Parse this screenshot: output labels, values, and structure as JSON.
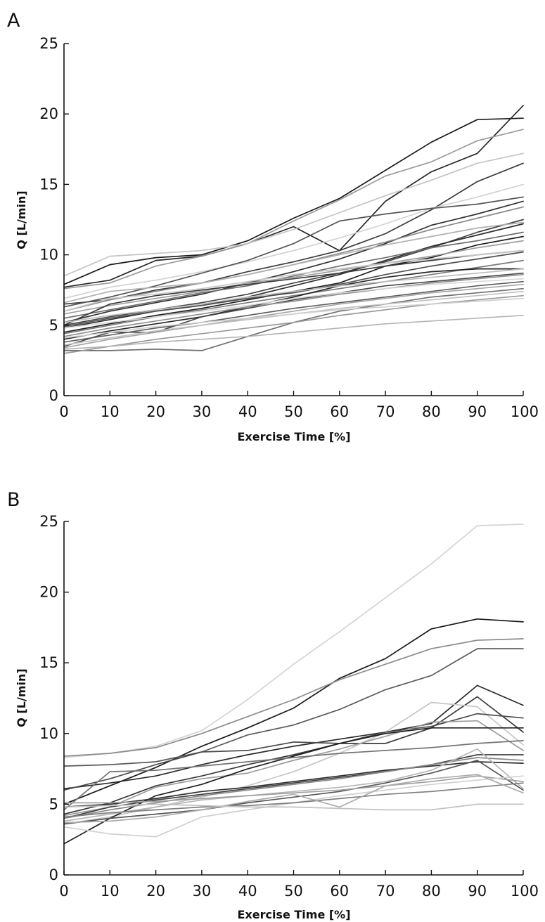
{
  "chart_data": [
    {
      "type": "line",
      "panel": "A",
      "xlabel": "Exercise Time [%]",
      "ylabel": "Q [L/min]",
      "xlim": [
        0,
        100
      ],
      "ylim": [
        0,
        25
      ],
      "xticks": [
        0,
        10,
        20,
        30,
        40,
        50,
        60,
        70,
        80,
        90,
        100
      ],
      "yticks": [
        0,
        5,
        10,
        15,
        20,
        25
      ],
      "grid": false,
      "x": [
        0,
        10,
        20,
        30,
        40,
        50,
        60,
        70,
        80,
        90,
        100
      ],
      "series": [
        {
          "color": "#1a1a1a",
          "values": [
            7.9,
            9.3,
            9.8,
            10.0,
            11.0,
            12.6,
            14.0,
            16.0,
            18.0,
            19.6,
            19.7
          ]
        },
        {
          "color": "#262626",
          "values": [
            7.7,
            8.2,
            9.6,
            9.9,
            10.8,
            12.0,
            10.3,
            13.8,
            15.9,
            17.2,
            20.6
          ]
        },
        {
          "color": "#9a9a9a",
          "values": [
            7.6,
            8.0,
            9.2,
            9.9,
            10.8,
            12.4,
            13.9,
            15.6,
            16.6,
            18.1,
            18.9
          ]
        },
        {
          "color": "#c4c4c4",
          "values": [
            8.5,
            9.9,
            10.1,
            10.3,
            10.8,
            11.8,
            13.0,
            14.2,
            15.3,
            16.5,
            17.2
          ]
        },
        {
          "color": "#3c3c3c",
          "values": [
            6.5,
            6.8,
            7.5,
            8.0,
            8.8,
            9.5,
            10.3,
            11.5,
            13.2,
            15.2,
            16.5
          ]
        },
        {
          "color": "#d2d2d2",
          "values": [
            6.9,
            7.7,
            8.2,
            8.8,
            9.5,
            10.3,
            11.2,
            12.2,
            13.3,
            14.1,
            15.0
          ]
        },
        {
          "color": "#555555",
          "values": [
            6.3,
            7.0,
            7.8,
            8.7,
            9.6,
            10.8,
            12.4,
            12.9,
            13.3,
            13.6,
            14.1
          ]
        },
        {
          "color": "#333333",
          "values": [
            5.2,
            6.0,
            6.6,
            7.2,
            8.0,
            8.8,
            9.7,
            10.8,
            12.1,
            12.9,
            13.8
          ]
        },
        {
          "color": "#8a8a8a",
          "values": [
            6.0,
            6.8,
            7.4,
            8.0,
            8.6,
            9.3,
            10.1,
            10.9,
            11.8,
            12.6,
            13.4
          ]
        },
        {
          "color": "#444444",
          "values": [
            5.0,
            5.6,
            6.1,
            6.6,
            7.2,
            8.0,
            8.7,
            9.5,
            10.5,
            11.6,
            12.5
          ]
        },
        {
          "color": "#b0b0b0",
          "values": [
            6.6,
            7.4,
            7.7,
            8.0,
            8.6,
            9.3,
            10.0,
            10.7,
            11.3,
            11.9,
            12.3
          ]
        },
        {
          "color": "#2e2e2e",
          "values": [
            4.8,
            5.4,
            6.0,
            6.4,
            7.0,
            7.8,
            8.6,
            9.6,
            10.6,
            11.4,
            12.2
          ]
        },
        {
          "color": "#6e6e6e",
          "values": [
            5.5,
            6.1,
            6.7,
            7.3,
            7.8,
            8.5,
            9.2,
            9.8,
            10.5,
            11.0,
            11.6
          ]
        },
        {
          "color": "#1e1e1e",
          "values": [
            4.5,
            5.1,
            5.7,
            6.2,
            6.8,
            7.4,
            8.0,
            9.2,
            9.8,
            10.7,
            11.3
          ]
        },
        {
          "color": "#9e9e9e",
          "values": [
            5.8,
            6.4,
            6.9,
            7.4,
            8.0,
            8.4,
            8.9,
            9.4,
            9.9,
            10.5,
            11.0
          ]
        },
        {
          "color": "#3a3a3a",
          "values": [
            5.0,
            6.5,
            7.1,
            7.5,
            7.9,
            8.3,
            8.7,
            9.2,
            9.6,
            10.0,
            10.3
          ]
        },
        {
          "color": "#c8c8c8",
          "values": [
            6.0,
            6.9,
            7.2,
            7.6,
            8.1,
            8.6,
            9.0,
            9.4,
            9.7,
            10.0,
            10.3
          ]
        },
        {
          "color": "#505050",
          "values": [
            4.9,
            5.5,
            6.0,
            6.4,
            6.9,
            7.3,
            7.9,
            8.6,
            9.2,
            9.7,
            10.2
          ]
        },
        {
          "color": "#7a7a7a",
          "values": [
            4.4,
            5.0,
            5.6,
            6.1,
            6.6,
            7.1,
            7.6,
            8.1,
            8.6,
            9.1,
            9.6
          ]
        },
        {
          "color": "#262626",
          "values": [
            4.0,
            4.6,
            5.1,
            5.6,
            6.3,
            7.0,
            7.8,
            8.4,
            8.8,
            9.0,
            9.0
          ]
        },
        {
          "color": "#bdbdbd",
          "values": [
            5.2,
            5.7,
            6.1,
            6.5,
            7.0,
            7.4,
            7.8,
            8.1,
            8.4,
            8.7,
            9.0
          ]
        },
        {
          "color": "#4a4a4a",
          "values": [
            3.5,
            4.5,
            4.5,
            5.6,
            6.2,
            6.8,
            7.3,
            7.8,
            8.1,
            8.4,
            8.7
          ]
        },
        {
          "color": "#8e8e8e",
          "values": [
            4.2,
            4.8,
            5.3,
            5.8,
            6.3,
            6.7,
            7.2,
            7.6,
            8.0,
            8.3,
            8.6
          ]
        },
        {
          "color": "#d8d8d8",
          "values": [
            4.8,
            5.2,
            5.6,
            6.0,
            6.4,
            6.9,
            7.3,
            7.6,
            7.9,
            8.1,
            8.3
          ]
        },
        {
          "color": "#5e5e5e",
          "values": [
            3.8,
            4.3,
            4.8,
            5.2,
            5.7,
            6.2,
            6.6,
            7.0,
            7.4,
            7.8,
            8.1
          ]
        },
        {
          "color": "#a6a6a6",
          "values": [
            3.4,
            4.0,
            4.5,
            5.0,
            5.5,
            6.0,
            6.5,
            6.9,
            7.3,
            7.6,
            7.9
          ]
        },
        {
          "color": "#707070",
          "values": [
            3.2,
            3.2,
            3.3,
            3.2,
            4.2,
            5.2,
            6.0,
            6.5,
            7.0,
            7.3,
            7.6
          ]
        },
        {
          "color": "#c0c0c0",
          "values": [
            3.6,
            4.1,
            4.6,
            5.0,
            5.4,
            5.8,
            6.2,
            6.5,
            6.8,
            7.1,
            7.4
          ]
        },
        {
          "color": "#999999",
          "values": [
            3.0,
            3.5,
            4.0,
            4.4,
            4.8,
            5.2,
            5.7,
            6.1,
            6.5,
            6.8,
            7.1
          ]
        },
        {
          "color": "#d0d0d0",
          "values": [
            4.1,
            4.5,
            4.9,
            5.2,
            5.5,
            5.8,
            6.1,
            6.3,
            6.5,
            6.7,
            6.9
          ]
        },
        {
          "color": "#b5b5b5",
          "values": [
            3.3,
            3.5,
            3.8,
            4.0,
            4.2,
            4.5,
            4.8,
            5.1,
            5.3,
            5.5,
            5.7
          ]
        }
      ]
    },
    {
      "type": "line",
      "panel": "B",
      "xlabel": "Exercise Time [%]",
      "ylabel": "Q [L/min]",
      "xlim": [
        0,
        100
      ],
      "ylim": [
        0,
        25
      ],
      "xticks": [
        0,
        10,
        20,
        30,
        40,
        50,
        60,
        70,
        80,
        90,
        100
      ],
      "yticks": [
        0,
        5,
        10,
        15,
        20,
        25
      ],
      "grid": false,
      "x": [
        0,
        10,
        20,
        30,
        40,
        50,
        60,
        70,
        80,
        90,
        100
      ],
      "series": [
        {
          "color": "#d4d4d4",
          "values": [
            8.3,
            8.6,
            9.1,
            10.2,
            12.4,
            14.9,
            17.2,
            19.6,
            22.0,
            24.7,
            24.8
          ]
        },
        {
          "color": "#1a1a1a",
          "values": [
            5.0,
            6.3,
            7.6,
            9.1,
            10.4,
            11.8,
            13.9,
            15.3,
            17.4,
            18.1,
            17.9
          ]
        },
        {
          "color": "#8c8c8c",
          "values": [
            8.4,
            8.6,
            9.0,
            10.0,
            11.2,
            12.4,
            13.8,
            14.9,
            16.0,
            16.6,
            16.7
          ]
        },
        {
          "color": "#5a5a5a",
          "values": [
            7.7,
            7.8,
            8.0,
            8.7,
            9.9,
            10.6,
            11.7,
            13.1,
            14.1,
            16.0,
            16.0
          ]
        },
        {
          "color": "#2a2a2a",
          "values": [
            6.1,
            6.5,
            7.0,
            7.8,
            8.5,
            9.1,
            9.6,
            10.1,
            10.7,
            13.4,
            12.0
          ]
        },
        {
          "color": "#3a3a3a",
          "values": [
            4.3,
            5.1,
            6.3,
            7.0,
            7.8,
            8.5,
            9.3,
            9.3,
            10.4,
            12.6,
            10.1
          ]
        },
        {
          "color": "#c6c6c6",
          "values": [
            3.6,
            4.1,
            4.8,
            5.5,
            6.3,
            7.3,
            8.6,
            10.1,
            12.2,
            11.9,
            9.2
          ]
        },
        {
          "color": "#4c4c4c",
          "values": [
            6.0,
            6.8,
            7.8,
            8.7,
            8.8,
            9.4,
            9.3,
            10.1,
            10.5,
            11.4,
            11.1
          ]
        },
        {
          "color": "#9c9c9c",
          "values": [
            4.2,
            4.8,
            6.2,
            6.8,
            7.2,
            8.1,
            8.9,
            9.8,
            10.8,
            10.9,
            8.8
          ]
        },
        {
          "color": "#202020",
          "values": [
            2.2,
            4.0,
            5.6,
            6.4,
            7.5,
            8.4,
            9.3,
            10.0,
            10.4,
            10.4,
            10.4
          ]
        },
        {
          "color": "#747474",
          "values": [
            4.6,
            7.3,
            7.4,
            7.7,
            8.0,
            8.3,
            8.6,
            8.8,
            9.0,
            9.3,
            9.5
          ]
        },
        {
          "color": "#404040",
          "values": [
            4.0,
            4.8,
            5.3,
            5.7,
            6.1,
            6.5,
            6.9,
            7.3,
            7.8,
            8.5,
            8.5
          ]
        },
        {
          "color": "#2e2e2e",
          "values": [
            4.8,
            5.0,
            5.4,
            5.9,
            6.2,
            6.6,
            7.0,
            7.4,
            7.7,
            8.0,
            7.9
          ]
        },
        {
          "color": "#888888",
          "values": [
            4.0,
            4.6,
            5.1,
            5.6,
            6.0,
            6.4,
            6.8,
            7.3,
            7.8,
            8.3,
            8.1
          ]
        },
        {
          "color": "#b6b6b6",
          "values": [
            3.8,
            4.3,
            4.8,
            5.3,
            5.6,
            5.9,
            6.2,
            6.6,
            7.4,
            8.9,
            6.1
          ]
        },
        {
          "color": "#565656",
          "values": [
            3.6,
            4.0,
            4.3,
            4.6,
            5.1,
            5.5,
            5.9,
            6.5,
            7.2,
            8.1,
            6.0
          ]
        },
        {
          "color": "#a0a0a0",
          "values": [
            5.1,
            5.1,
            5.2,
            5.4,
            5.6,
            5.8,
            6.0,
            6.3,
            6.6,
            7.0,
            6.6
          ]
        },
        {
          "color": "#d0d0d0",
          "values": [
            3.4,
            2.9,
            2.7,
            4.1,
            4.6,
            5.1,
            5.6,
            6.0,
            6.4,
            6.7,
            7.0
          ]
        },
        {
          "color": "#7e7e7e",
          "values": [
            4.1,
            4.4,
            4.6,
            4.8,
            4.9,
            5.1,
            5.4,
            5.7,
            5.9,
            6.2,
            6.5
          ]
        },
        {
          "color": "#acacac",
          "values": [
            3.7,
            3.8,
            4.1,
            4.6,
            5.2,
            5.7,
            4.8,
            6.3,
            6.8,
            7.1,
            5.8
          ]
        },
        {
          "color": "#c2c2c2",
          "values": [
            4.8,
            4.9,
            5.0,
            4.9,
            4.8,
            4.8,
            4.7,
            4.6,
            4.6,
            5.0,
            5.0
          ]
        }
      ]
    }
  ],
  "panel_letters": [
    "A",
    "B"
  ],
  "panels": [
    {
      "letter": "A",
      "xlabel": "Exercise Time [%]",
      "ylabel": "Q [L/min]"
    },
    {
      "letter": "B",
      "xlabel": "Exercise Time [%]",
      "ylabel": "Q [L/min]"
    }
  ]
}
